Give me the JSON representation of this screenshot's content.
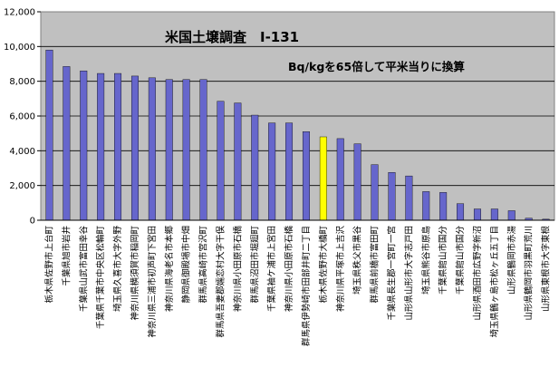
{
  "chart_data": {
    "type": "bar",
    "title": "米国土壌調査　I-131",
    "subtitle": "Bq/kgを65倍して平米当りに換算",
    "ylim": [
      0,
      12000
    ],
    "yticks": [
      "0",
      "2,000",
      "4,000",
      "6,000",
      "8,000",
      "10,000",
      "12,000"
    ],
    "grid": true,
    "plot_bg": "#c0c0c0",
    "bar_color": "#6666cc",
    "highlight_color": "#ffff00",
    "highlight_index": 16,
    "categories": [
      "栃木県佐野市上台町",
      "千葉県旭市岩井",
      "千葉県山武市富田幸谷",
      "千葉県千葉市中央区松輪町",
      "埼玉県久喜市大字外野",
      "神奈川県横須賀市稲岡町",
      "神奈川県三浦市初声町下宮田",
      "神奈川県海老名市本郷",
      "静岡県御殿場市中畑",
      "群馬県高崎市宮沢町",
      "群馬県吾妻郡嬬恋村大字干俣",
      "神奈川県小田原市石橋",
      "群馬県沼田市堀廻町",
      "千葉県袖ケ浦市上宮田",
      "神奈川県小田原市石橋",
      "群馬県伊勢崎市田部井町二丁目",
      "栃木県佐野市大橋町",
      "神奈川県平塚市上吉沢",
      "埼玉県秩父市黒谷",
      "群馬県前橋市富田町",
      "千葉県長生郡一宮町一宮",
      "山形県山形市大字志戸田",
      "埼玉県熊谷市原島",
      "千葉県館山市国分",
      "千葉県館山市国分",
      "山形県酒田市広野字新沼",
      "埼玉県鶴ヶ島市松ヶ丘五丁目",
      "山形県鶴岡市赤湯",
      "山形県鶴岡市羽黒町荒川",
      "山形県東根市大字東根"
    ],
    "values": [
      9800,
      8850,
      8600,
      8450,
      8450,
      8300,
      8200,
      8100,
      8100,
      8100,
      6850,
      6750,
      6050,
      5600,
      5600,
      5100,
      4800,
      4700,
      4400,
      3200,
      2750,
      2550,
      1650,
      1600,
      950,
      650,
      650,
      550,
      120,
      60
    ]
  }
}
